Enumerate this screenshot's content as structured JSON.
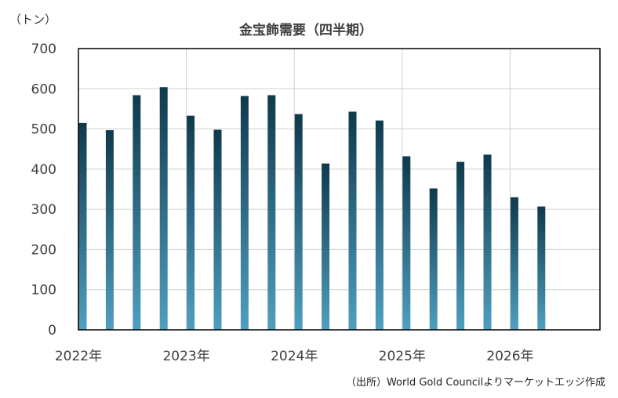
{
  "chart_data": {
    "type": "bar",
    "title": "金宝飾需要（四半期）",
    "unit_label": "（トン）",
    "source": "（出所）World Gold Councilよりマーケットエッジ作成",
    "ylim": [
      0,
      700
    ],
    "yticks": [
      0,
      100,
      200,
      300,
      400,
      500,
      600,
      700
    ],
    "xtick_labels": [
      "2022年",
      "2023年",
      "2024年",
      "2025年",
      "2026年"
    ],
    "grid": true,
    "categories": [
      "2022Q1",
      "2022Q2",
      "2022Q3",
      "2022Q4",
      "2023Q1",
      "2023Q2",
      "2023Q3",
      "2023Q4",
      "2024Q1",
      "2024Q2",
      "2024Q3",
      "2024Q4",
      "2025Q1",
      "2025Q2",
      "2025Q3",
      "2025Q4",
      "2026Q1",
      "2026Q2"
    ],
    "values": [
      515,
      497,
      584,
      604,
      533,
      498,
      582,
      584,
      537,
      414,
      543,
      521,
      432,
      352,
      418,
      436,
      330,
      307
    ],
    "colors": {
      "bar_top": "#0f3a4c",
      "bar_bottom": "#4f9fc0",
      "grid": "#d0d0d0",
      "axis": "#000000"
    }
  }
}
